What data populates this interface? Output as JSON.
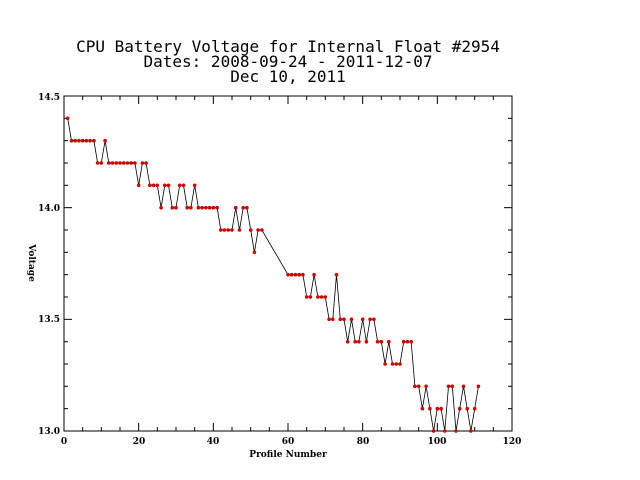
{
  "chart_data": {
    "type": "line",
    "title_lines": [
      "CPU Battery Voltage for Internal Float #2954",
      "Dates:  2008-09-24 -  2011-12-07",
      "Dec 10, 2011"
    ],
    "xlabel": "Profile Number",
    "ylabel": "Voltage",
    "xlim": [
      0,
      120
    ],
    "ylim": [
      13.0,
      14.5
    ],
    "x_ticks": [
      "0",
      "20",
      "40",
      "60",
      "80",
      "100",
      "120"
    ],
    "y_ticks": [
      "13.0",
      "13.5",
      "14.0",
      "14.5"
    ],
    "grid": false,
    "line_color": "#000000",
    "marker_color": "#cc0000",
    "series": [
      {
        "x": [
          1,
          2,
          3,
          4,
          5,
          6,
          7,
          8,
          9,
          10,
          11,
          12,
          13,
          14,
          15,
          16,
          17,
          18,
          19,
          20,
          21,
          22,
          23,
          24,
          25,
          26,
          27,
          28,
          29,
          30,
          31,
          32,
          33,
          34,
          35,
          36,
          37,
          38,
          39,
          40,
          41,
          42,
          43,
          44,
          45,
          46,
          47,
          48,
          49,
          50,
          51,
          52,
          53,
          60,
          61,
          62,
          63,
          64,
          65,
          66,
          67,
          68,
          69,
          70,
          71,
          72,
          73,
          74,
          75,
          76,
          77,
          78,
          79,
          80,
          81,
          82,
          83,
          84,
          85,
          86,
          87,
          88,
          89,
          90,
          91,
          92,
          93,
          94,
          95,
          96,
          97,
          98,
          99,
          100,
          101,
          102,
          103,
          104,
          105,
          106,
          107,
          108,
          109,
          110,
          111
        ],
        "y": [
          14.4,
          14.3,
          14.3,
          14.3,
          14.3,
          14.3,
          14.3,
          14.3,
          14.2,
          14.2,
          14.3,
          14.2,
          14.2,
          14.2,
          14.2,
          14.2,
          14.2,
          14.2,
          14.2,
          14.1,
          14.2,
          14.2,
          14.1,
          14.1,
          14.1,
          14.0,
          14.1,
          14.1,
          14.0,
          14.0,
          14.1,
          14.1,
          14.0,
          14.0,
          14.1,
          14.0,
          14.0,
          14.0,
          14.0,
          14.0,
          14.0,
          13.9,
          13.9,
          13.9,
          13.9,
          14.0,
          13.9,
          14.0,
          14.0,
          13.9,
          13.8,
          13.9,
          13.9,
          13.7,
          13.7,
          13.7,
          13.7,
          13.7,
          13.6,
          13.6,
          13.7,
          13.6,
          13.6,
          13.6,
          13.5,
          13.5,
          13.7,
          13.5,
          13.5,
          13.4,
          13.5,
          13.4,
          13.4,
          13.5,
          13.4,
          13.5,
          13.5,
          13.4,
          13.4,
          13.3,
          13.4,
          13.3,
          13.3,
          13.3,
          13.4,
          13.4,
          13.4,
          13.2,
          13.2,
          13.1,
          13.2,
          13.1,
          13.0,
          13.1,
          13.1,
          13.0,
          13.2,
          13.2,
          13.0,
          13.1,
          13.2,
          13.1,
          13.0,
          13.1,
          13.2
        ]
      }
    ]
  }
}
